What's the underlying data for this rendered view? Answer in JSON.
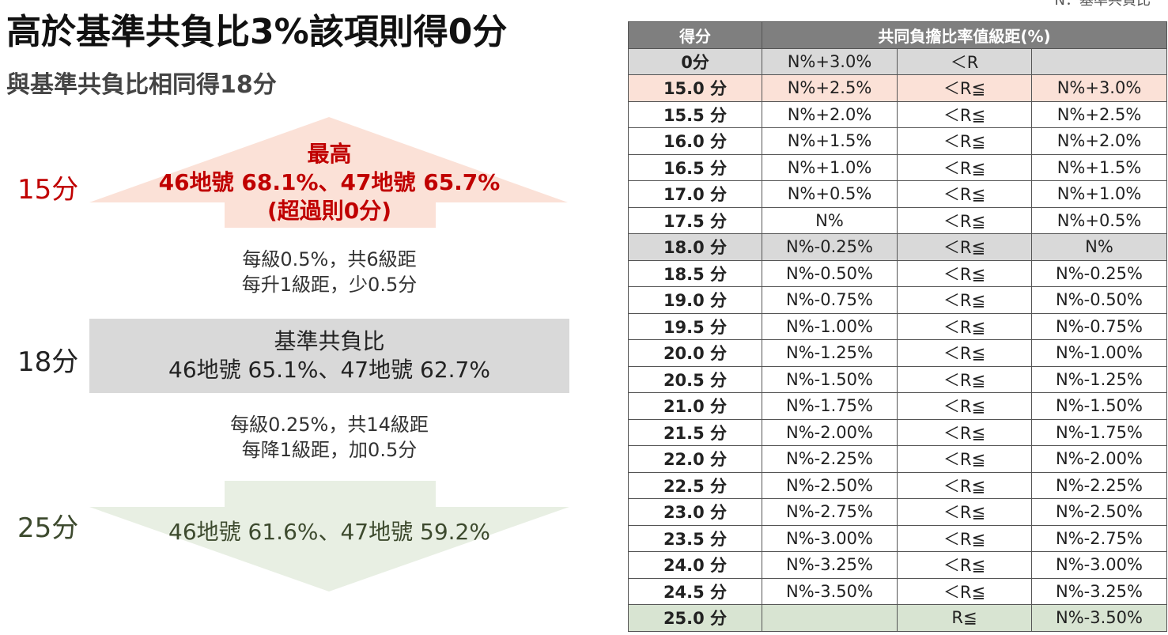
{
  "title": "高於基準共負比3%該項則得0分",
  "subtitle": "與基準共負比相同得18分",
  "note": "N：基準共負比",
  "diagram": {
    "top": {
      "score": "15分",
      "lines": [
        "最高",
        "46地號 68.1%、47地號 65.7%",
        "(超過則0分)"
      ]
    },
    "step_up": [
      "每級0.5%，共6級距",
      "每升1級距，少0.5分"
    ],
    "middle": {
      "score": "18分",
      "lines": [
        "基準共負比",
        "46地號 65.1%、47地號 62.7%"
      ]
    },
    "step_down": [
      "每級0.25%，共14級距",
      "每降1級距，加0.5分"
    ],
    "bottom": {
      "score": "25分",
      "lines": [
        "46地號 61.6%、47地號 59.2%"
      ]
    }
  },
  "table": {
    "header": [
      "得分",
      "共同負擔比率值級距(%)"
    ],
    "rows": [
      [
        "0分",
        "N%+3.0%",
        "＜R",
        null
      ],
      [
        "15.0 分",
        "N%+2.5%",
        "＜R≦",
        "N%+3.0%"
      ],
      [
        "15.5 分",
        "N%+2.0%",
        "＜R≦",
        "N%+2.5%"
      ],
      [
        "16.0 分",
        "N%+1.5%",
        "＜R≦",
        "N%+2.0%"
      ],
      [
        "16.5 分",
        "N%+1.0%",
        "＜R≦",
        "N%+1.5%"
      ],
      [
        "17.0 分",
        "N%+0.5%",
        "＜R≦",
        "N%+1.0%"
      ],
      [
        "17.5 分",
        "N%",
        "＜R≦",
        "N%+0.5%"
      ],
      [
        "18.0 分",
        "N%-0.25%",
        "＜R≦",
        "N%"
      ],
      [
        "18.5 分",
        "N%-0.50%",
        "＜R≦",
        "N%-0.25%"
      ],
      [
        "19.0 分",
        "N%-0.75%",
        "＜R≦",
        "N%-0.50%"
      ],
      [
        "19.5 分",
        "N%-1.00%",
        "＜R≦",
        "N%-0.75%"
      ],
      [
        "20.0 分",
        "N%-1.25%",
        "＜R≦",
        "N%-1.00%"
      ],
      [
        "20.5 分",
        "N%-1.50%",
        "＜R≦",
        "N%-1.25%"
      ],
      [
        "21.0 分",
        "N%-1.75%",
        "＜R≦",
        "N%-1.50%"
      ],
      [
        "21.5 分",
        "N%-2.00%",
        "＜R≦",
        "N%-1.75%"
      ],
      [
        "22.0 分",
        "N%-2.25%",
        "＜R≦",
        "N%-2.00%"
      ],
      [
        "22.5 分",
        "N%-2.50%",
        "＜R≦",
        "N%-2.25%"
      ],
      [
        "23.0 分",
        "N%-2.75%",
        "＜R≦",
        "N%-2.50%"
      ],
      [
        "23.5 分",
        "N%-3.00%",
        "＜R≦",
        "N%-2.75%"
      ],
      [
        "24.0 分",
        "N%-3.25%",
        "＜R≦",
        "N%-3.00%"
      ],
      [
        "24.5 分",
        "N%-3.50%",
        "＜R≦",
        "N%-3.25%"
      ],
      [
        "25.0 分",
        null,
        "R≦",
        "N%-3.50%"
      ]
    ]
  }
}
